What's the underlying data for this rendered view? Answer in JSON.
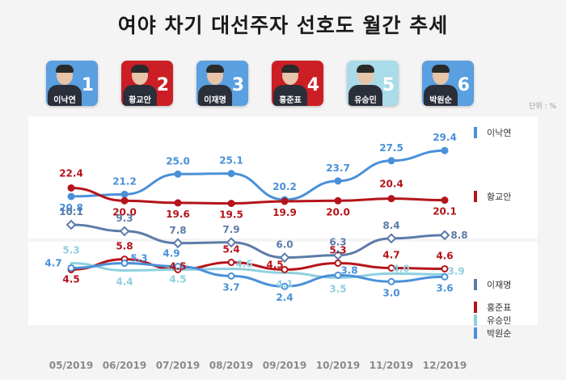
{
  "title": "여야 차기 대선주자 선호도 월간 추세",
  "unit_label": "단위 : %",
  "colors": {
    "blue": "#4a90d9",
    "red": "#b5141a",
    "lightblue": "#8ed0df",
    "darkblue": "#5c7ca8",
    "card_blue": "#5a9fe0",
    "card_red": "#cc1f25",
    "card_light": "#a9dbe8"
  },
  "candidates": [
    {
      "rank": "1",
      "name": "이낙연",
      "color": "blue"
    },
    {
      "rank": "2",
      "name": "황교안",
      "color": "red"
    },
    {
      "rank": "3",
      "name": "이재명",
      "color": "blue"
    },
    {
      "rank": "4",
      "name": "홍준표",
      "color": "red"
    },
    {
      "rank": "5",
      "name": "유승민",
      "color": "light"
    },
    {
      "rank": "6",
      "name": "박원순",
      "color": "blue"
    }
  ],
  "chart_data": {
    "type": "line",
    "categories": [
      "05/2019",
      "06/2019",
      "07/2019",
      "08/2019",
      "09/2019",
      "10/2019",
      "11/2019",
      "12/2019"
    ],
    "series": [
      {
        "name": "이낙연",
        "color": "#4a90d9",
        "marker": "circle",
        "values": [
          20.8,
          21.2,
          25.0,
          25.1,
          20.2,
          23.7,
          27.5,
          29.4
        ],
        "labels": [
          "20.8",
          "21.2",
          "25.0",
          "25.1",
          "20.2",
          "23.7",
          "27.5",
          "29.4"
        ]
      },
      {
        "name": "황교안",
        "color": "#b5141a",
        "marker": "circle",
        "values": [
          22.4,
          20.0,
          19.6,
          19.5,
          19.9,
          20.0,
          20.4,
          20.1
        ],
        "labels": [
          "22.4",
          "20.0",
          "19.6",
          "19.5",
          "19.9",
          "20.0",
          "20.4",
          "20.1"
        ]
      },
      {
        "name": "이재명",
        "color": "#5c7ca8",
        "marker": "diamond",
        "values": [
          10.1,
          9.3,
          7.8,
          7.9,
          6.0,
          6.3,
          8.4,
          8.8
        ],
        "labels": [
          "10.1",
          "9.3",
          "7.8",
          "7.9",
          "6.0",
          "6.3",
          "8.4",
          "8.8"
        ]
      },
      {
        "name": "홍준표",
        "color": "#b5141a",
        "marker": "circle-white",
        "values": [
          4.5,
          5.8,
          4.5,
          5.4,
          4.5,
          5.3,
          4.7,
          4.6
        ],
        "labels": [
          "4.5",
          "5.8",
          "4.5",
          "5.4",
          "4.5",
          "5.3",
          "4.7",
          "4.6"
        ]
      },
      {
        "name": "유승민",
        "color": "#8ed0df",
        "marker": "none",
        "values": [
          5.3,
          4.4,
          4.5,
          4.6,
          4.1,
          3.5,
          4.0,
          3.9
        ],
        "labels": [
          "5.3",
          "4.4",
          "4.5",
          "4.6",
          "4.1",
          "3.5",
          "4.0",
          "3.9"
        ]
      },
      {
        "name": "박원순",
        "color": "#4a90d9",
        "marker": "circle-white",
        "values": [
          4.7,
          5.3,
          4.9,
          3.7,
          2.4,
          3.8,
          3.0,
          3.6
        ],
        "labels": [
          "4.7",
          "5.3",
          "4.9",
          "3.7",
          "2.4",
          "3.8",
          "3.0",
          "3.6"
        ]
      }
    ]
  }
}
